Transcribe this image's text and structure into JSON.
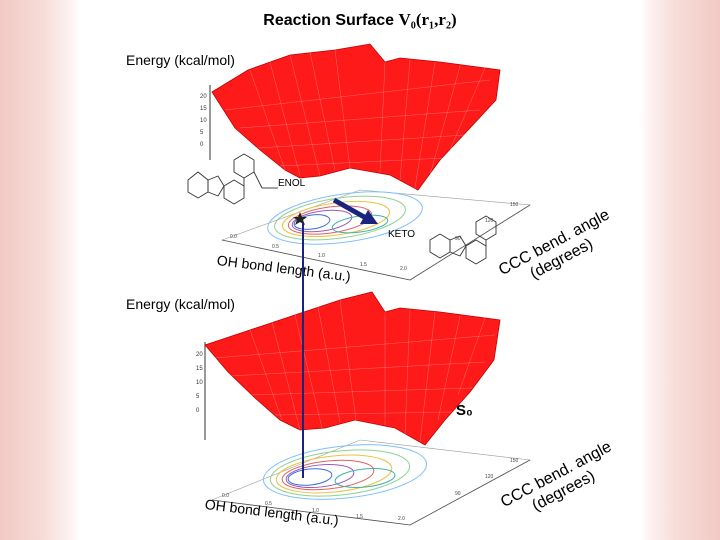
{
  "title": {
    "prefix": "Reaction Surface",
    "math": "V₀(r₁,r₂)"
  },
  "top_panel": {
    "energy_label": "Energy (kcal/mol)",
    "enol_label": "ENOL",
    "keto_label": "KETO",
    "oh_axis_label": "OH bond length (a.u.)",
    "ccc_axis_line1": "CCC bend. angle",
    "ccc_axis_line2": "(degrees)",
    "surface_color": "#ff1a1a",
    "arrow_color": "#1a237e"
  },
  "bottom_panel": {
    "energy_label": "Energy (kcal/mol)",
    "state_label": "S₀",
    "oh_axis_label": "OH bond length (a.u.)",
    "ccc_axis_line1": "CCC bend. angle",
    "ccc_axis_line2": "(degrees)",
    "surface_color": "#ff1a1a"
  },
  "connector_color": "#1a237e"
}
